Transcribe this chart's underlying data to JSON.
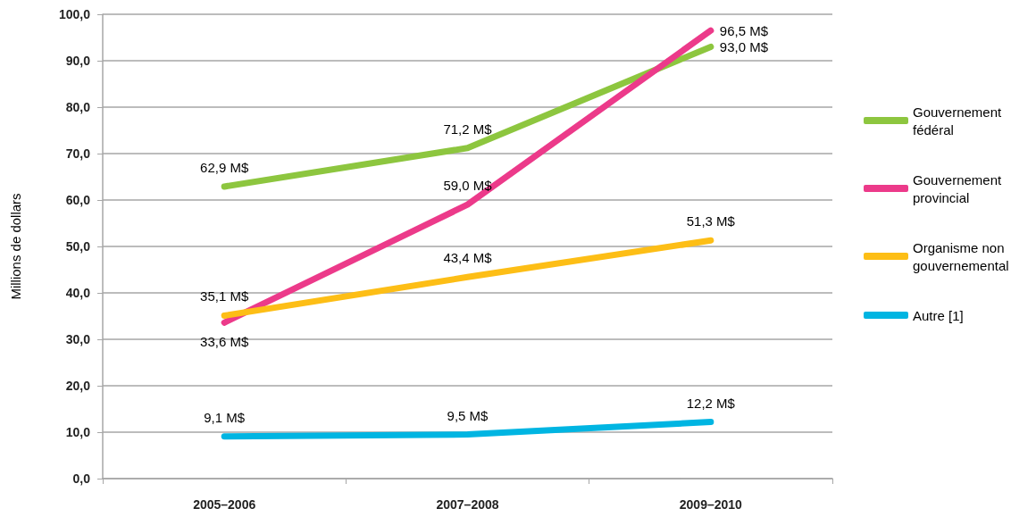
{
  "chart_data": {
    "type": "line",
    "ylabel": "Millions de dollars",
    "categories": [
      "2005–2006",
      "2007–2008",
      "2009–2010"
    ],
    "series": [
      {
        "name": "Gouvernement fédéral",
        "color": "#8dc63f",
        "values": [
          62.9,
          71.2,
          93.0
        ],
        "value_labels": [
          "62,9 M$",
          "71,2 M$",
          "93,0 M$"
        ]
      },
      {
        "name": "Gouvernement provincial",
        "color": "#ec3a8a",
        "values": [
          33.6,
          59.0,
          96.5
        ],
        "value_labels": [
          "33,6 M$",
          "59,0 M$",
          "96,5 M$"
        ]
      },
      {
        "name": "Organisme non gouvernemental",
        "color": "#fdbe16",
        "values": [
          35.1,
          43.4,
          51.3
        ],
        "value_labels": [
          "35,1 M$",
          "43,4 M$",
          "51,3 M$"
        ]
      },
      {
        "name": "Autre [1]",
        "color": "#00b5e2",
        "values": [
          9.1,
          9.5,
          12.2
        ],
        "value_labels": [
          "9,1 M$",
          "9,5 M$",
          "12,2 M$"
        ]
      }
    ],
    "ylim": [
      0,
      100
    ],
    "yticks": [
      {
        "value": 0,
        "label": "0,0"
      },
      {
        "value": 10,
        "label": "10,0"
      },
      {
        "value": 20,
        "label": "20,0"
      },
      {
        "value": 30,
        "label": "30,0"
      },
      {
        "value": 40,
        "label": "40,0"
      },
      {
        "value": 50,
        "label": "50,0"
      },
      {
        "value": 60,
        "label": "60,0"
      },
      {
        "value": 70,
        "label": "70,0"
      },
      {
        "value": 80,
        "label": "80,0"
      },
      {
        "value": 90,
        "label": "90,0"
      },
      {
        "value": 100,
        "label": "100,0"
      }
    ],
    "grid": "y",
    "legend": "right",
    "marker": "none",
    "line_style": "solid"
  }
}
